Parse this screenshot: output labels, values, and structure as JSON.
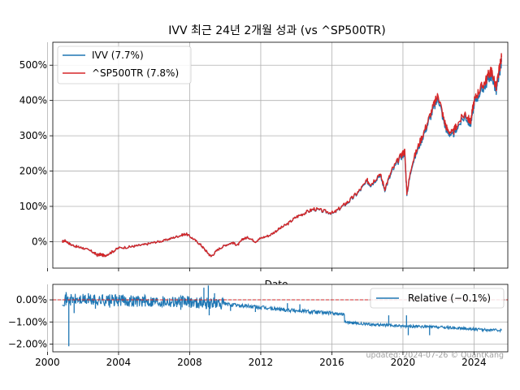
{
  "chart_data": [
    {
      "type": "line",
      "title": "IVV 최근 24년 2개월 성과 (vs ^SP500TR)",
      "xlabel": "Date",
      "ylabel": "",
      "xlim": [
        2000.3,
        2025.9
      ],
      "ylim": [
        -75,
        565
      ],
      "y_ticks": [
        0,
        100,
        200,
        300,
        400,
        500
      ],
      "y_tick_labels": [
        "0%",
        "100%",
        "200%",
        "300%",
        "400%",
        "500%"
      ],
      "grid": true,
      "legend_position": "top-left",
      "series": [
        {
          "name": "IVV (7.7%)",
          "color": "#1f77b4",
          "x": [
            2000.83,
            2001.0,
            2001.3,
            2001.7,
            2002.0,
            2002.5,
            2002.8,
            2003.0,
            2003.2,
            2003.6,
            2004.0,
            2004.6,
            2005.0,
            2005.5,
            2006.0,
            2006.5,
            2007.0,
            2007.5,
            2007.8,
            2008.2,
            2008.6,
            2008.9,
            2009.2,
            2009.6,
            2010.0,
            2010.4,
            2010.7,
            2011.0,
            2011.3,
            2011.7,
            2012.0,
            2012.5,
            2013.0,
            2013.5,
            2014.0,
            2014.5,
            2015.0,
            2015.6,
            2016.1,
            2016.6,
            2017.0,
            2017.5,
            2018.0,
            2018.2,
            2018.7,
            2018.98,
            2019.4,
            2019.9,
            2020.1,
            2020.22,
            2020.5,
            2020.9,
            2021.3,
            2021.7,
            2021.99,
            2022.3,
            2022.5,
            2022.8,
            2023.0,
            2023.5,
            2023.8,
            2024.0,
            2024.3,
            2024.6,
            2024.9,
            2025.0,
            2025.25,
            2025.4,
            2025.55
          ],
          "values": [
            0,
            3,
            -8,
            -15,
            -18,
            -28,
            -38,
            -36,
            -40,
            -30,
            -18,
            -15,
            -12,
            -8,
            -2,
            2,
            10,
            18,
            22,
            8,
            -8,
            -25,
            -42,
            -22,
            -10,
            -3,
            -10,
            8,
            12,
            0,
            10,
            18,
            35,
            50,
            70,
            82,
            92,
            85,
            80,
            100,
            115,
            140,
            170,
            160,
            190,
            148,
            200,
            240,
            252,
            135,
            215,
            270,
            320,
            375,
            408,
            340,
            310,
            300,
            320,
            355,
            330,
            390,
            420,
            440,
            470,
            470,
            425,
            470,
            510
          ]
        },
        {
          "name": "^SP500TR (7.8%)",
          "color": "#d62728",
          "x": [
            2000.83,
            2001.0,
            2001.3,
            2001.7,
            2002.0,
            2002.5,
            2002.8,
            2003.0,
            2003.2,
            2003.6,
            2004.0,
            2004.6,
            2005.0,
            2005.5,
            2006.0,
            2006.5,
            2007.0,
            2007.5,
            2007.8,
            2008.2,
            2008.6,
            2008.9,
            2009.2,
            2009.6,
            2010.0,
            2010.4,
            2010.7,
            2011.0,
            2011.3,
            2011.7,
            2012.0,
            2012.5,
            2013.0,
            2013.5,
            2014.0,
            2014.5,
            2015.0,
            2015.6,
            2016.1,
            2016.6,
            2017.0,
            2017.5,
            2018.0,
            2018.2,
            2018.7,
            2018.98,
            2019.4,
            2019.9,
            2020.1,
            2020.22,
            2020.5,
            2020.9,
            2021.3,
            2021.7,
            2021.99,
            2022.3,
            2022.5,
            2022.8,
            2023.0,
            2023.5,
            2023.8,
            2024.0,
            2024.3,
            2024.6,
            2024.9,
            2025.0,
            2025.25,
            2025.4,
            2025.55
          ],
          "values": [
            0,
            3,
            -8,
            -15,
            -18,
            -28,
            -38,
            -36,
            -40,
            -30,
            -18,
            -15,
            -12,
            -8,
            -2,
            2,
            10,
            18,
            22,
            8,
            -8,
            -25,
            -42,
            -22,
            -10,
            -3,
            -10,
            8,
            12,
            0,
            10,
            18,
            35,
            50,
            70,
            82,
            93,
            86,
            81,
            101,
            117,
            142,
            173,
            163,
            194,
            151,
            205,
            245,
            257,
            138,
            220,
            276,
            327,
            383,
            417,
            347,
            317,
            307,
            328,
            364,
            338,
            399,
            430,
            451,
            482,
            482,
            436,
            482,
            523
          ]
        }
      ]
    },
    {
      "type": "line",
      "title": "",
      "xlabel": "",
      "ylabel": "",
      "xlim": [
        2000.3,
        2025.9
      ],
      "ylim": [
        -2.35,
        0.7
      ],
      "x_ticks": [
        2000,
        2004,
        2008,
        2012,
        2016,
        2020,
        2024
      ],
      "x_tick_labels": [
        "2000",
        "2004",
        "2008",
        "2012",
        "2016",
        "2020",
        "2024"
      ],
      "y_ticks": [
        0,
        -1,
        -2
      ],
      "y_tick_labels": [
        "0.00%",
        "−1.00%",
        "−2.00%"
      ],
      "reference_line": {
        "y": 0,
        "color": "#d62728",
        "style": "dashed"
      },
      "grid": true,
      "legend_position": "top-right",
      "series": [
        {
          "name": "Relative (−0.1%)",
          "color": "#1f77b4",
          "x": [
            2000.83,
            2002.0,
            2003.0,
            2004.0,
            2005.0,
            2006.0,
            2007.0,
            2008.0,
            2009.0,
            2010.0,
            2011.0,
            2012.0,
            2013.0,
            2014.0,
            2015.0,
            2016.0,
            2016.7,
            2016.72,
            2017.5,
            2018.5,
            2019.5,
            2020.5,
            2021.5,
            2022.5,
            2023.5,
            2024.5,
            2025.55
          ],
          "values": [
            0.0,
            0.0,
            -0.02,
            -0.03,
            -0.04,
            -0.05,
            -0.06,
            -0.1,
            -0.14,
            -0.2,
            -0.27,
            -0.35,
            -0.42,
            -0.48,
            -0.55,
            -0.6,
            -0.65,
            -1.0,
            -1.08,
            -1.12,
            -1.17,
            -1.2,
            -1.22,
            -1.25,
            -1.3,
            -1.35,
            -1.38
          ]
        }
      ],
      "spikes": [
        {
          "x": 2001.2,
          "v": -2.1
        },
        {
          "x": 2001.05,
          "v": 0.35
        },
        {
          "x": 2001.5,
          "v": -0.6
        },
        {
          "x": 2002.3,
          "v": 0.3
        },
        {
          "x": 2002.7,
          "v": -0.4
        },
        {
          "x": 2003.1,
          "v": 0.25
        },
        {
          "x": 2003.5,
          "v": -0.35
        },
        {
          "x": 2004.2,
          "v": 0.2
        },
        {
          "x": 2005.5,
          "v": -0.3
        },
        {
          "x": 2007.5,
          "v": -0.45
        },
        {
          "x": 2008.8,
          "v": 0.55
        },
        {
          "x": 2009.05,
          "v": 0.65
        },
        {
          "x": 2009.1,
          "v": -0.7
        },
        {
          "x": 2009.4,
          "v": 0.3
        },
        {
          "x": 2010.3,
          "v": -0.5
        },
        {
          "x": 2011.7,
          "v": -0.55
        },
        {
          "x": 2013.5,
          "v": -0.15
        },
        {
          "x": 2014.2,
          "v": -0.2
        },
        {
          "x": 2019.2,
          "v": -0.7
        },
        {
          "x": 2020.2,
          "v": -0.7
        },
        {
          "x": 2020.3,
          "v": -1.6
        },
        {
          "x": 2021.5,
          "v": -1.6
        }
      ]
    }
  ],
  "footer": "updated: 2024-07-26 © QuantKang"
}
